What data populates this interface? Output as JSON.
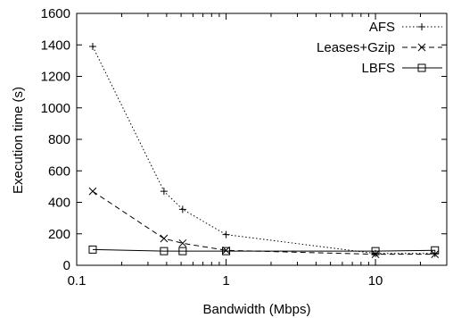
{
  "chart_data": {
    "type": "line",
    "xlabel": "Bandwidth (Mbps)",
    "ylabel": "Execution time (s)",
    "x_scale": "log",
    "xlim": [
      0.1,
      30
    ],
    "ylim": [
      0,
      1600
    ],
    "x_ticks": [
      0.1,
      1,
      10
    ],
    "x_tick_labels": [
      "0.1",
      "1",
      "10"
    ],
    "y_ticks": [
      0,
      200,
      400,
      600,
      800,
      1000,
      1200,
      1400,
      1600
    ],
    "y_tick_labels": [
      "0",
      "200",
      "400",
      "600",
      "800",
      "1000",
      "1200",
      "1400",
      "1600"
    ],
    "grid": false,
    "legend_position": "top-right",
    "series": [
      {
        "name": "AFS",
        "marker": "plus",
        "line_style": "dotted",
        "color": "#000000",
        "x": [
          0.128,
          0.384,
          0.512,
          1.0,
          10.0,
          25.0
        ],
        "y": [
          1390,
          470,
          355,
          195,
          75,
          75
        ]
      },
      {
        "name": "Leases+Gzip",
        "marker": "cross",
        "line_style": "dashed",
        "color": "#000000",
        "x": [
          0.128,
          0.384,
          0.512,
          1.0,
          10.0,
          25.0
        ],
        "y": [
          470,
          170,
          140,
          95,
          70,
          70
        ]
      },
      {
        "name": "LBFS",
        "marker": "square",
        "line_style": "solid",
        "color": "#000000",
        "x": [
          0.128,
          0.384,
          0.512,
          1.0,
          10.0,
          25.0
        ],
        "y": [
          100,
          90,
          90,
          90,
          90,
          95
        ]
      }
    ]
  }
}
